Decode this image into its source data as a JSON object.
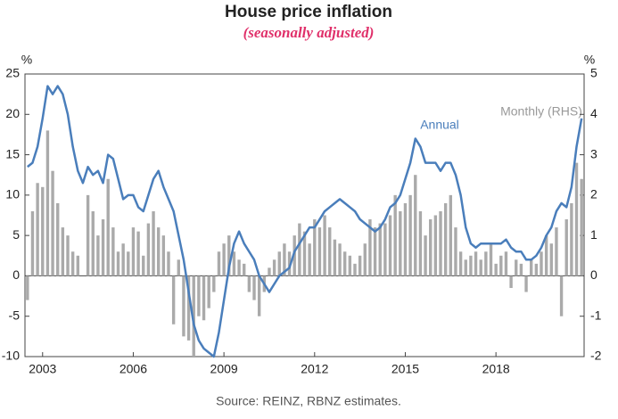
{
  "chart_data": {
    "type": "bar-line",
    "title": "House price inflation",
    "subtitle": "(seasonally adjusted)",
    "y_unit": "%",
    "y2_unit": "%",
    "source": "Source: REINZ, RBNZ estimates.",
    "annotations": [
      "Annual",
      "Monthly (RHS)"
    ],
    "categories": [
      null,
      null,
      null,
      "2003",
      null,
      null,
      null,
      null,
      null,
      null,
      null,
      null,
      null,
      null,
      null,
      null,
      null,
      null,
      null,
      null,
      null,
      "2006",
      null,
      null,
      null,
      null,
      null,
      null,
      null,
      null,
      null,
      null,
      null,
      null,
      null,
      null,
      null,
      null,
      null,
      "2009",
      null,
      null,
      null,
      null,
      null,
      null,
      null,
      null,
      null,
      null,
      null,
      null,
      null,
      null,
      null,
      null,
      null,
      "2012",
      null,
      null,
      null,
      null,
      null,
      null,
      null,
      null,
      null,
      null,
      null,
      null,
      null,
      null,
      null,
      null,
      null,
      "2015",
      null,
      null,
      null,
      null,
      null,
      null,
      null,
      null,
      null,
      null,
      null,
      null,
      null,
      null,
      null,
      null,
      null,
      "2018",
      null,
      null,
      null,
      null,
      null,
      null,
      null,
      null,
      null,
      null,
      null,
      null,
      null,
      null,
      null,
      null,
      null
    ],
    "series": [
      {
        "name": "Monthly (RHS)",
        "type": "bar",
        "axis": "y2",
        "color": "#aaaaaa",
        "values": [
          -0.6,
          1.6,
          2.3,
          2.2,
          3.6,
          2.6,
          1.8,
          1.2,
          1,
          0.6,
          0.5,
          0,
          2,
          1.6,
          1,
          1.4,
          2.4,
          1.2,
          0.6,
          0.8,
          0.6,
          1.2,
          1.1,
          0.5,
          1.3,
          1.6,
          1.2,
          1,
          0.6,
          -1.2,
          0.4,
          -1.5,
          -1.6,
          -2,
          -1,
          -1.1,
          -0.8,
          -0.4,
          0.6,
          0.8,
          1,
          0.6,
          0.4,
          0.3,
          -0.4,
          -0.6,
          -1,
          -0.4,
          0.2,
          0.4,
          0.6,
          0.8,
          0.6,
          1,
          1.3,
          1.1,
          0.8,
          1.4,
          1.2,
          1.5,
          1.2,
          0.9,
          0.8,
          0.6,
          0.5,
          0.3,
          0.5,
          0.8,
          1.4,
          1.2,
          1.3,
          1.3,
          1.5,
          2,
          1.6,
          1.8,
          2,
          2.5,
          1.6,
          1,
          1.4,
          1.5,
          1.6,
          1.8,
          2,
          1.2,
          0.6,
          0.4,
          0.5,
          0.6,
          0.4,
          0.6,
          0.8,
          0.3,
          0.5,
          0.6,
          -0.3,
          0.4,
          0.3,
          -0.4,
          0.4,
          0.3,
          0.6,
          1,
          0.8,
          1.2,
          -1,
          1.4,
          1.8,
          2.8,
          2.4
        ]
      },
      {
        "name": "Annual",
        "type": "line",
        "axis": "y",
        "color": "#4a7ebb",
        "values": [
          13.5,
          14,
          16,
          19.5,
          23.5,
          22.5,
          23.5,
          22.5,
          20,
          16,
          13,
          11.5,
          13.5,
          12.5,
          13,
          11.5,
          15,
          14.5,
          12,
          9.5,
          10,
          10,
          8.5,
          8,
          10,
          12,
          13,
          11,
          9.5,
          8,
          5,
          2,
          -2,
          -6,
          -8,
          -9,
          -9.5,
          -10,
          -7,
          -3,
          1,
          4,
          5.5,
          4,
          3,
          2,
          0,
          -1,
          -2,
          -1,
          0,
          0.5,
          1,
          3,
          4,
          5,
          6,
          6,
          7,
          8,
          8.5,
          9,
          9.5,
          9,
          8.5,
          8,
          7,
          6.5,
          6,
          5.5,
          6,
          7,
          8.5,
          9,
          10,
          12,
          14,
          17,
          16,
          14,
          14,
          14,
          13,
          14,
          14,
          12.5,
          10,
          6,
          4,
          3.5,
          4,
          4,
          4,
          4,
          4,
          4.5,
          3.5,
          3,
          3,
          2,
          2,
          2.5,
          3.5,
          5,
          6,
          8,
          9,
          8.5,
          11,
          16,
          19.5
        ]
      }
    ],
    "ylim": [
      -10,
      25
    ],
    "yticks": [
      -10,
      -5,
      0,
      5,
      10,
      15,
      20,
      25
    ],
    "y2lim": [
      -2,
      5
    ],
    "y2ticks": [
      -2,
      -1,
      0,
      1,
      2,
      3,
      4,
      5
    ]
  }
}
